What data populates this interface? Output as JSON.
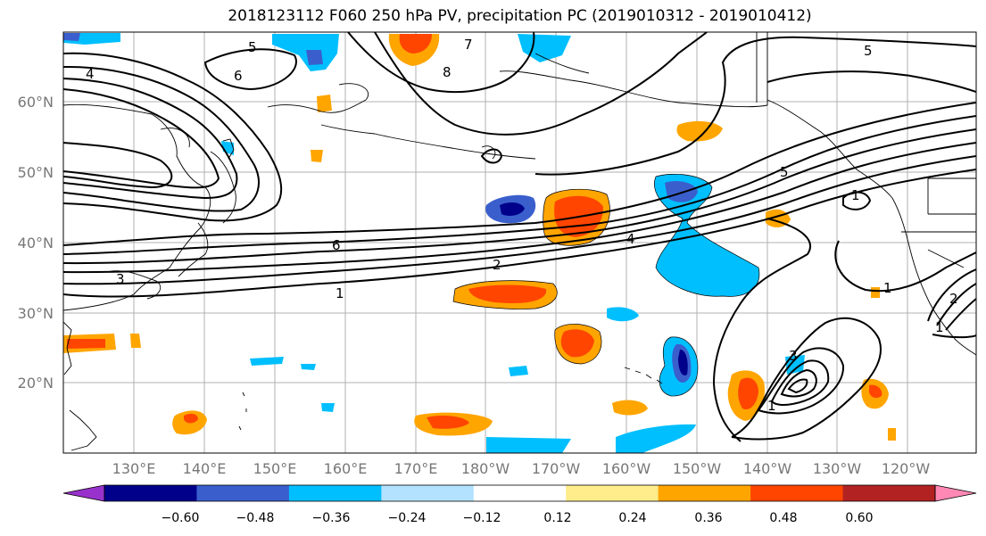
{
  "title": "2018123112 F060 250 hPa PV, precipitation PC (2019010312 - 2019010412)",
  "lat_labels": [
    "60°N",
    "50°N",
    "40°N",
    "30°N",
    "20°N"
  ],
  "lon_labels": [
    "130°E",
    "140°E",
    "150°E",
    "160°E",
    "170°E",
    "180°W",
    "170°W",
    "160°W",
    "150°W",
    "140°W",
    "130°W",
    "120°W"
  ],
  "pv_contour_labels": [
    "5",
    "6",
    "4",
    "7",
    "8",
    "5",
    "5",
    "6",
    "4",
    "2",
    "1",
    "1",
    "3",
    "1",
    "1",
    "2",
    "1",
    "3"
  ],
  "colorbar": {
    "tick_labels": [
      "−0.60",
      "−0.48",
      "−0.36",
      "−0.24",
      "−0.12",
      "0.12",
      "0.24",
      "0.36",
      "0.48",
      "0.60"
    ],
    "colors": [
      "#9932cc",
      "#00008b",
      "#3a5fcd",
      "#00bfff",
      "#b2e2ff",
      "#ffffff",
      "#ffec8b",
      "#ffa500",
      "#ff4500",
      "#b22222",
      "#ff88b4"
    ]
  }
}
